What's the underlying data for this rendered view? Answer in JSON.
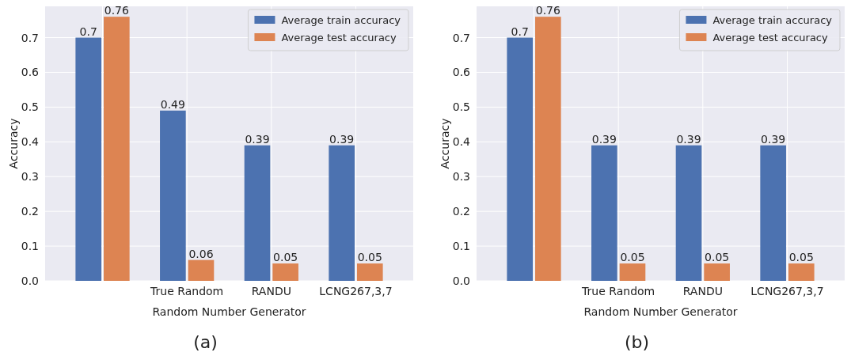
{
  "chart_data": [
    {
      "type": "bar",
      "xlabel": "Random Number Generator",
      "ylabel": "Accuracy",
      "categories": [
        null,
        "True Random",
        "RANDU",
        "LCNG267,3,7"
      ],
      "series": [
        {
          "name": "Average train accuracy",
          "color": "#4c72b0",
          "values": [
            0.7,
            0.49,
            0.39,
            0.39
          ]
        },
        {
          "name": "Average test accuracy",
          "color": "#dd8452",
          "values": [
            0.76,
            0.06,
            0.05,
            0.05
          ]
        }
      ],
      "ylim": [
        0,
        0.79
      ],
      "yticks": [
        {
          "value": 0,
          "label": "0.0"
        },
        0.1,
        0.2,
        0.3,
        0.4,
        0.5,
        0.6,
        0.7
      ],
      "grid": true,
      "legend": "top right",
      "data_labels": true,
      "annotations": [
        "(a)"
      ]
    },
    {
      "type": "bar",
      "xlabel": "Random Number Generator",
      "ylabel": "Accuracy",
      "categories": [
        null,
        "True Random",
        "RANDU",
        "LCNG267,3,7"
      ],
      "series": [
        {
          "name": "Average train accuracy",
          "color": "#4c72b0",
          "values": [
            0.7,
            0.39,
            0.39,
            0.39
          ]
        },
        {
          "name": "Average test accuracy",
          "color": "#dd8452",
          "values": [
            0.76,
            0.05,
            0.05,
            0.05
          ]
        }
      ],
      "ylim": [
        0,
        0.79
      ],
      "yticks": [
        {
          "value": 0,
          "label": "0.0"
        },
        0.1,
        0.2,
        0.3,
        0.4,
        0.5,
        0.6,
        0.7
      ],
      "grid": true,
      "legend": "top right",
      "data_labels": true,
      "annotations": [
        "(b)"
      ]
    }
  ]
}
